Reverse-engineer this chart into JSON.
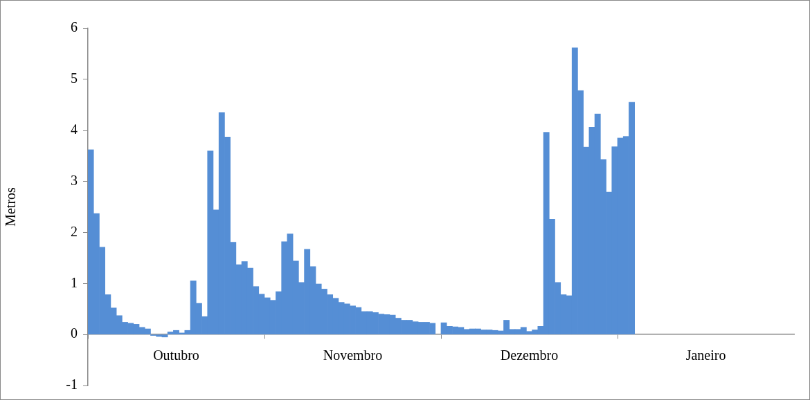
{
  "chart_data": {
    "type": "bar",
    "ylabel": "Metros",
    "color": "#558ed5",
    "categories": [
      null,
      null,
      null,
      null,
      null,
      null,
      null,
      null,
      null,
      null,
      null,
      null,
      null,
      null,
      null,
      "Outubro",
      null,
      null,
      null,
      null,
      null,
      null,
      null,
      null,
      null,
      null,
      null,
      null,
      null,
      null,
      null,
      null,
      null,
      null,
      null,
      null,
      null,
      null,
      null,
      null,
      null,
      null,
      null,
      null,
      null,
      null,
      "Novembro",
      null,
      null,
      null,
      null,
      null,
      null,
      null,
      null,
      null,
      null,
      null,
      null,
      null,
      null,
      null,
      null,
      null,
      null,
      null,
      null,
      null,
      null,
      null,
      null,
      null,
      null,
      null,
      null,
      null,
      null,
      "Dezembro",
      null,
      null,
      null,
      null,
      null,
      null,
      null,
      null,
      null,
      null,
      null,
      null,
      null,
      null,
      null,
      null,
      null,
      null,
      null,
      null,
      null,
      null,
      null,
      null,
      null,
      null,
      null,
      null,
      null,
      null,
      "Janeiro",
      null,
      null,
      null,
      null,
      null,
      null,
      null,
      null,
      null,
      null,
      null,
      null,
      null,
      null,
      null
    ],
    "values": [
      3.62,
      2.37,
      1.71,
      0.78,
      0.52,
      0.37,
      0.24,
      0.22,
      0.2,
      0.14,
      0.11,
      -0.02,
      -0.04,
      -0.05,
      0.05,
      0.08,
      0.03,
      0.08,
      1.05,
      0.61,
      0.35,
      3.6,
      2.44,
      4.35,
      3.87,
      1.81,
      1.37,
      1.43,
      1.3,
      0.94,
      0.79,
      0.72,
      0.67,
      0.84,
      1.82,
      1.97,
      1.44,
      1.02,
      1.67,
      1.33,
      0.99,
      0.89,
      0.78,
      0.71,
      0.63,
      0.6,
      0.56,
      0.53,
      0.45,
      0.45,
      0.43,
      0.4,
      0.39,
      0.38,
      0.32,
      0.28,
      0.28,
      0.25,
      0.24,
      0.24,
      0.22,
      null,
      0.23,
      0.16,
      0.15,
      0.14,
      0.1,
      0.11,
      0.11,
      0.09,
      0.09,
      0.08,
      0.07,
      0.28,
      0.1,
      0.1,
      0.14,
      0.06,
      0.09,
      0.16,
      3.96,
      2.26,
      1.02,
      0.78,
      0.76,
      5.62,
      4.78,
      3.67,
      4.06,
      4.32,
      3.43,
      2.79,
      3.68,
      3.85,
      3.88,
      4.55,
      null,
      null,
      null,
      null,
      null,
      null,
      null,
      null,
      null,
      null,
      null,
      null,
      null,
      null,
      null,
      null,
      null,
      null,
      null,
      null,
      null,
      null,
      null,
      null,
      null,
      null,
      null,
      null
    ],
    "ylim": [
      -1,
      6
    ],
    "yticks": [
      -1,
      0,
      1,
      2,
      3,
      4,
      5,
      6
    ],
    "legend": false
  }
}
